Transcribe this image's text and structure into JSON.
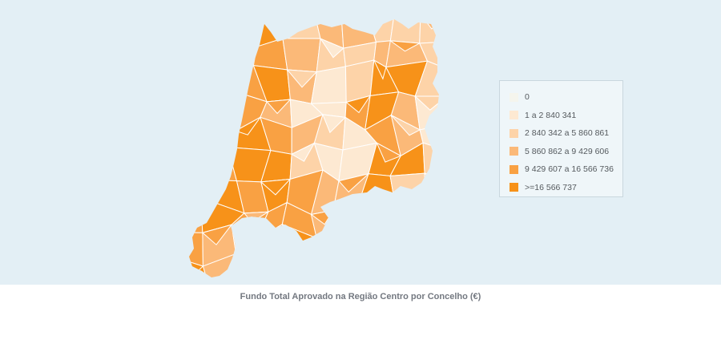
{
  "map": {
    "background_color": "#e3eff5",
    "border_color": "#ffffff",
    "shape_count": 100
  },
  "legend": {
    "items": [
      {
        "label": "0",
        "color": "#f5f5ed"
      },
      {
        "label": "1 a 2 840 341",
        "color": "#fde9d2"
      },
      {
        "label": "2 840 342 a 5 860 861",
        "color": "#fdd3a8"
      },
      {
        "label": "5 860 862 a 9 429 606",
        "color": "#fbb978"
      },
      {
        "label": "9 429 607 a 16 566 736",
        "color": "#f9a143"
      },
      {
        "label": ">=16 566 737",
        "color": "#f79219"
      }
    ]
  },
  "caption": {
    "text": "Fundo Total Aprovado na Região Centro por Concelho (€)"
  }
}
